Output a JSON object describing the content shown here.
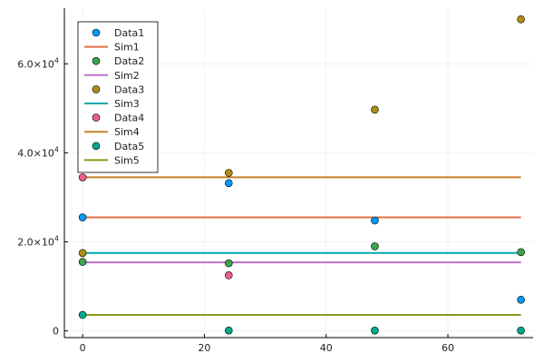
{
  "chart_data": {
    "type": "scatter",
    "title": "",
    "xlabel": "",
    "ylabel": "",
    "xlim": [
      -3,
      74
    ],
    "ylim": [
      -1500,
      72500
    ],
    "grid": true,
    "legend_position": "top-left",
    "xticks": [
      0,
      20,
      40,
      60
    ],
    "xtick_labels": [
      "0",
      "20",
      "40",
      "60"
    ],
    "yticks": [
      0,
      20000,
      40000,
      60000
    ],
    "ytick_labels": [
      {
        "mantissa": "0",
        "exponent": ""
      },
      {
        "mantissa": "2.0×10",
        "exponent": "4"
      },
      {
        "mantissa": "4.0×10",
        "exponent": "4"
      },
      {
        "mantissa": "6.0×10",
        "exponent": "4"
      }
    ],
    "series": [
      {
        "name": "Data1",
        "kind": "scatter",
        "color": "#009af9",
        "x": [
          0,
          24,
          48,
          72
        ],
        "y": [
          25500,
          33200,
          24800,
          7000
        ]
      },
      {
        "name": "Sim1",
        "kind": "line",
        "color": "#e26f46",
        "x": [
          0,
          72
        ],
        "y": [
          25500,
          25500
        ]
      },
      {
        "name": "Data2",
        "kind": "scatter",
        "color": "#3da44d",
        "x": [
          0,
          24,
          48,
          72
        ],
        "y": [
          15500,
          15200,
          19000,
          17700
        ]
      },
      {
        "name": "Sim2",
        "kind": "line",
        "color": "#c271d2",
        "x": [
          0,
          72
        ],
        "y": [
          15400,
          15400
        ]
      },
      {
        "name": "Data3",
        "kind": "scatter",
        "color": "#ac8d18",
        "x": [
          0,
          24,
          48,
          72
        ],
        "y": [
          17500,
          35500,
          49700,
          70000
        ]
      },
      {
        "name": "Sim3",
        "kind": "line",
        "color": "#00a9ad",
        "x": [
          0,
          72
        ],
        "y": [
          17500,
          17500
        ]
      },
      {
        "name": "Data4",
        "kind": "scatter",
        "color": "#ed5d92",
        "x": [
          0,
          24
        ],
        "y": [
          34500,
          12500
        ]
      },
      {
        "name": "Sim4",
        "kind": "line",
        "color": "#c68125",
        "x": [
          0,
          72
        ],
        "y": [
          34500,
          34500
        ]
      },
      {
        "name": "Data5",
        "kind": "scatter",
        "color": "#00a98d",
        "x": [
          0,
          24,
          48,
          72
        ],
        "y": [
          3600,
          100,
          100,
          100
        ]
      },
      {
        "name": "Sim5",
        "kind": "line",
        "color": "#8e971d",
        "x": [
          0,
          72
        ],
        "y": [
          3600,
          3600
        ]
      }
    ]
  }
}
